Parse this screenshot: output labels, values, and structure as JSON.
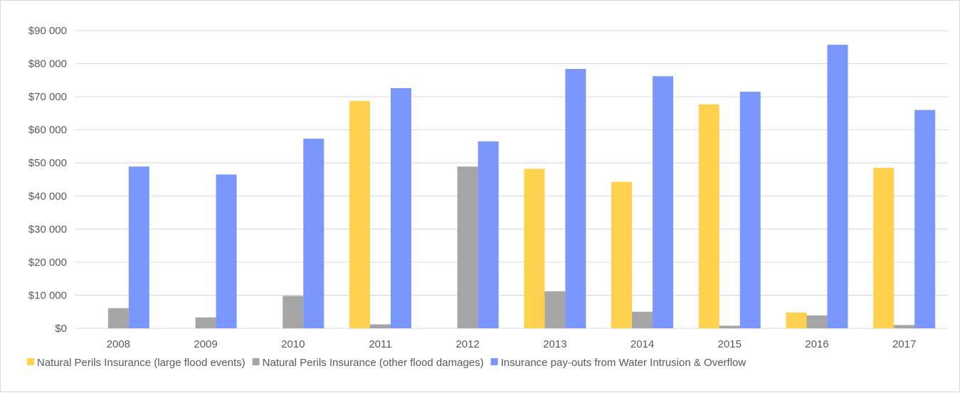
{
  "chart_data": {
    "type": "bar",
    "categories": [
      "2008",
      "2009",
      "2010",
      "2011",
      "2012",
      "2013",
      "2014",
      "2015",
      "2016",
      "2017"
    ],
    "series": [
      {
        "name": "Natural Perils Insurance (large flood events)",
        "color": "#ffd14f",
        "values": [
          0,
          0,
          0,
          68700,
          0,
          48200,
          44300,
          67700,
          4800,
          48500
        ]
      },
      {
        "name": "Natural Perils Insurance (other flood damages)",
        "color": "#a5a5a5",
        "values": [
          6100,
          3300,
          9800,
          1200,
          48900,
          11200,
          5000,
          800,
          3900,
          1000
        ]
      },
      {
        "name": "Insurance pay-outs from Water Intrusion & Overflow",
        "color": "#7a96ff",
        "values": [
          48900,
          46500,
          57300,
          72600,
          56500,
          78400,
          76200,
          71500,
          85700,
          66000
        ]
      }
    ],
    "yticks": [
      "$0",
      "$10 000",
      "$20 000",
      "$30 000",
      "$40 000",
      "$50 000",
      "$60 000",
      "$70 000",
      "$80 000",
      "$90 000"
    ],
    "ylim": [
      0,
      90000
    ],
    "grid": true,
    "legend": "bottom-left",
    "gridColor": "#d9d9d9",
    "textColor": "#595959"
  }
}
